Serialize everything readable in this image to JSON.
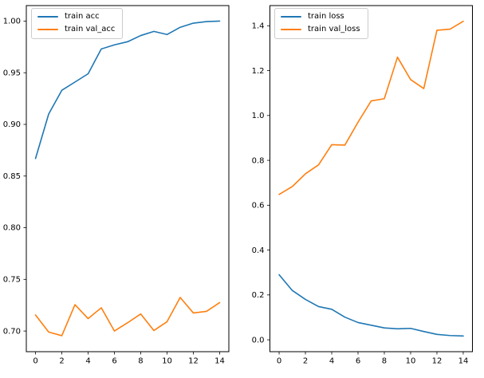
{
  "figure": {
    "background": "#ffffff",
    "accent_blue": "#1f77b4",
    "accent_orange": "#ff7f0e"
  },
  "chart_data": [
    {
      "id": "accuracy",
      "type": "line",
      "title": "",
      "xlabel": "",
      "ylabel": "",
      "x": [
        0,
        1,
        2,
        3,
        4,
        5,
        6,
        7,
        8,
        9,
        10,
        11,
        12,
        13,
        14
      ],
      "series": [
        {
          "name": "train acc",
          "color": "#1f77b4",
          "values": [
            0.867,
            0.91,
            0.933,
            0.941,
            0.949,
            0.973,
            0.977,
            0.98,
            0.986,
            0.99,
            0.987,
            0.994,
            0.998,
            0.9995,
            1.0
          ]
        },
        {
          "name": "train val_acc",
          "color": "#ff7f0e",
          "values": [
            0.7155,
            0.699,
            0.6955,
            0.7255,
            0.712,
            0.7225,
            0.7,
            0.708,
            0.7165,
            0.7005,
            0.709,
            0.7325,
            0.7175,
            0.719,
            0.7275
          ]
        }
      ],
      "xlim": [
        -0.7,
        14.7
      ],
      "ylim": [
        0.68,
        1.015
      ],
      "xticks": {
        "values": [
          0,
          2,
          4,
          6,
          8,
          10,
          12,
          14
        ],
        "labels": [
          "0",
          "2",
          "4",
          "6",
          "8",
          "10",
          "12",
          "14"
        ]
      },
      "yticks": {
        "values": [
          0.7,
          0.75,
          0.8,
          0.85,
          0.9,
          0.95,
          1.0
        ],
        "labels": [
          "0.70",
          "0.75",
          "0.80",
          "0.85",
          "0.90",
          "0.95",
          "1.00"
        ]
      },
      "grid": false,
      "legend": {
        "position": "upper-left",
        "entries": [
          {
            "label": "train acc",
            "color": "#1f77b4"
          },
          {
            "label": "train val_acc",
            "color": "#ff7f0e"
          }
        ]
      }
    },
    {
      "id": "loss",
      "type": "line",
      "title": "",
      "xlabel": "",
      "ylabel": "",
      "x": [
        0,
        1,
        2,
        3,
        4,
        5,
        6,
        7,
        8,
        9,
        10,
        11,
        12,
        13,
        14
      ],
      "series": [
        {
          "name": "train loss",
          "color": "#1f77b4",
          "values": [
            0.29,
            0.22,
            0.18,
            0.148,
            0.136,
            0.101,
            0.077,
            0.065,
            0.053,
            0.049,
            0.051,
            0.037,
            0.024,
            0.019,
            0.017
          ]
        },
        {
          "name": "train val_loss",
          "color": "#ff7f0e",
          "values": [
            0.648,
            0.683,
            0.74,
            0.78,
            0.87,
            0.868,
            0.97,
            1.065,
            1.075,
            1.26,
            1.16,
            1.12,
            1.38,
            1.385,
            1.42
          ]
        }
      ],
      "xlim": [
        -0.7,
        14.7
      ],
      "ylim": [
        -0.053,
        1.49
      ],
      "xticks": {
        "values": [
          0,
          2,
          4,
          6,
          8,
          10,
          12,
          14
        ],
        "labels": [
          "0",
          "2",
          "4",
          "6",
          "8",
          "10",
          "12",
          "14"
        ]
      },
      "yticks": {
        "values": [
          0.0,
          0.2,
          0.4,
          0.6,
          0.8,
          1.0,
          1.2,
          1.4
        ],
        "labels": [
          "0.0",
          "0.2",
          "0.4",
          "0.6",
          "0.8",
          "1.0",
          "1.2",
          "1.4"
        ]
      },
      "grid": false,
      "legend": {
        "position": "upper-left",
        "entries": [
          {
            "label": "train loss",
            "color": "#1f77b4"
          },
          {
            "label": "train val_loss",
            "color": "#ff7f0e"
          }
        ]
      }
    }
  ]
}
